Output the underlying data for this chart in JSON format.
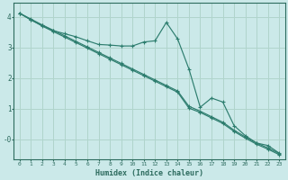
{
  "xlabel": "Humidex (Indice chaleur)",
  "bg_color": "#cbe9e9",
  "grid_color": "#b0d4cc",
  "line_color": "#2d7d6e",
  "xlim": [
    -0.5,
    23.5
  ],
  "ylim": [
    -0.65,
    4.45
  ],
  "yticks": [
    0,
    1,
    2,
    3,
    4
  ],
  "ytick_labels": [
    "-0",
    "1",
    "2",
    "3",
    "4"
  ],
  "xticks": [
    0,
    1,
    2,
    3,
    4,
    5,
    6,
    7,
    8,
    9,
    10,
    11,
    12,
    13,
    14,
    15,
    16,
    17,
    18,
    19,
    20,
    21,
    22,
    23
  ],
  "line1_x": [
    0,
    1,
    2,
    3,
    4,
    5,
    6,
    7,
    8,
    9,
    10,
    11,
    12,
    13,
    14,
    15,
    16,
    17,
    18,
    19,
    20,
    21,
    22,
    23
  ],
  "line1_y": [
    4.12,
    3.9,
    3.72,
    3.55,
    3.45,
    3.35,
    3.22,
    3.1,
    3.08,
    3.05,
    3.05,
    3.18,
    3.22,
    3.82,
    3.28,
    2.3,
    1.05,
    1.35,
    1.22,
    0.45,
    0.12,
    -0.12,
    -0.2,
    -0.45
  ],
  "line2_x": [
    0,
    1,
    2,
    3,
    4,
    5,
    6,
    7,
    8,
    9,
    10,
    11,
    12,
    13,
    14,
    15,
    16,
    17,
    18,
    19,
    20,
    21,
    22,
    23
  ],
  "line2_y": [
    4.12,
    3.93,
    3.74,
    3.56,
    3.38,
    3.2,
    3.02,
    2.84,
    2.66,
    2.48,
    2.3,
    2.12,
    1.94,
    1.76,
    1.58,
    1.08,
    0.92,
    0.74,
    0.56,
    0.3,
    0.08,
    -0.12,
    -0.28,
    -0.46
  ],
  "line3_x": [
    0,
    1,
    2,
    3,
    4,
    5,
    6,
    7,
    8,
    9,
    10,
    11,
    12,
    13,
    14,
    15,
    16,
    17,
    18,
    19,
    20,
    21,
    22,
    23
  ],
  "line3_y": [
    4.12,
    3.91,
    3.7,
    3.52,
    3.34,
    3.16,
    2.98,
    2.8,
    2.62,
    2.44,
    2.26,
    2.08,
    1.9,
    1.72,
    1.54,
    1.02,
    0.88,
    0.7,
    0.52,
    0.26,
    0.04,
    -0.16,
    -0.32,
    -0.5
  ]
}
